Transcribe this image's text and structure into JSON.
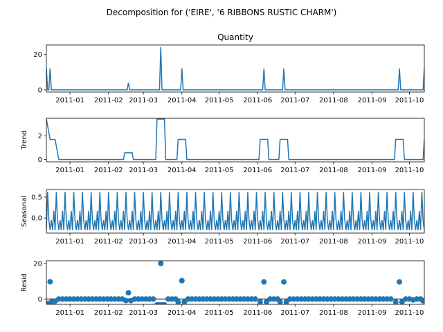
{
  "suptitle": "Decomposition for ('EIRE', '6 RIBBONS RUSTIC CHARM')",
  "colors": {
    "series": "#1f77b4",
    "axes": "#000000",
    "background": "#ffffff"
  },
  "chart_data": [
    {
      "type": "line",
      "title": "Quantity",
      "ylabel": "",
      "ylim": [
        -1.2,
        25.2
      ],
      "yticks": [
        0,
        20
      ],
      "ytick_labels": [
        "0",
        "20"
      ],
      "xlim": [
        "2010-12-13",
        "2011-10-13"
      ],
      "xticks": [
        "2011-01-01",
        "2011-02-01",
        "2011-03-01",
        "2011-04-01",
        "2011-05-01",
        "2011-06-01",
        "2011-07-01",
        "2011-08-01",
        "2011-09-01",
        "2011-10-01"
      ],
      "xtick_labels": [
        "2011-01",
        "2011-02",
        "2011-03",
        "2011-04",
        "2011-05",
        "2011-06",
        "2011-07",
        "2011-08",
        "2011-09",
        "2011-10"
      ],
      "baseline": 0,
      "spikes": [
        {
          "x": "2010-12-13",
          "value": 12
        },
        {
          "x": "2010-12-16",
          "value": 12
        },
        {
          "x": "2011-02-17",
          "value": 4
        },
        {
          "x": "2011-03-15",
          "value": 24
        },
        {
          "x": "2011-04-01",
          "value": 12
        },
        {
          "x": "2011-06-06",
          "value": 12
        },
        {
          "x": "2011-06-22",
          "value": 12
        },
        {
          "x": "2011-09-23",
          "value": 12
        },
        {
          "x": "2011-10-13",
          "value": 12
        }
      ]
    },
    {
      "type": "line",
      "title": "",
      "ylabel": "Trend",
      "ylim": [
        -0.2,
        3.5
      ],
      "yticks": [
        0,
        2
      ],
      "ytick_labels": [
        "0",
        "2"
      ],
      "xlim": [
        "2010-12-13",
        "2011-10-13"
      ],
      "xticks": [
        "2011-01-01",
        "2011-02-01",
        "2011-03-01",
        "2011-04-01",
        "2011-05-01",
        "2011-06-01",
        "2011-07-01",
        "2011-08-01",
        "2011-09-01",
        "2011-10-01"
      ],
      "xtick_labels": [
        "2011-01",
        "2011-02",
        "2011-03",
        "2011-04",
        "2011-05",
        "2011-06",
        "2011-07",
        "2011-08",
        "2011-09",
        "2011-10"
      ],
      "points": [
        {
          "x": "2010-12-13",
          "y": 3.45
        },
        {
          "x": "2010-12-16",
          "y": 1.7
        },
        {
          "x": "2010-12-20",
          "y": 1.7
        },
        {
          "x": "2010-12-23",
          "y": 0
        },
        {
          "x": "2011-02-13",
          "y": 0
        },
        {
          "x": "2011-02-14",
          "y": 0.57
        },
        {
          "x": "2011-02-20",
          "y": 0.57
        },
        {
          "x": "2011-02-21",
          "y": 0
        },
        {
          "x": "2011-03-11",
          "y": 0
        },
        {
          "x": "2011-03-12",
          "y": 3.43
        },
        {
          "x": "2011-03-18",
          "y": 3.43
        },
        {
          "x": "2011-03-19",
          "y": 0
        },
        {
          "x": "2011-03-28",
          "y": 0
        },
        {
          "x": "2011-03-29",
          "y": 1.71
        },
        {
          "x": "2011-04-04",
          "y": 1.71
        },
        {
          "x": "2011-04-05",
          "y": 0
        },
        {
          "x": "2011-06-02",
          "y": 0
        },
        {
          "x": "2011-06-03",
          "y": 1.71
        },
        {
          "x": "2011-06-09",
          "y": 1.71
        },
        {
          "x": "2011-06-10",
          "y": 0
        },
        {
          "x": "2011-06-18",
          "y": 0
        },
        {
          "x": "2011-06-19",
          "y": 1.71
        },
        {
          "x": "2011-06-25",
          "y": 1.71
        },
        {
          "x": "2011-06-26",
          "y": 0
        },
        {
          "x": "2011-09-19",
          "y": 0
        },
        {
          "x": "2011-09-20",
          "y": 1.71
        },
        {
          "x": "2011-09-26",
          "y": 1.71
        },
        {
          "x": "2011-09-27",
          "y": 0
        },
        {
          "x": "2011-10-12",
          "y": 0
        },
        {
          "x": "2011-10-13",
          "y": 1.71
        }
      ]
    },
    {
      "type": "line",
      "title": "",
      "ylabel": "Seasonal",
      "ylim": [
        -0.36,
        0.68
      ],
      "yticks": [
        0.0,
        0.5
      ],
      "ytick_labels": [
        "0.0",
        "0.5"
      ],
      "xlim": [
        "2010-12-13",
        "2011-10-13"
      ],
      "xticks": [
        "2011-01-01",
        "2011-02-01",
        "2011-03-01",
        "2011-04-01",
        "2011-05-01",
        "2011-06-01",
        "2011-07-01",
        "2011-08-01",
        "2011-09-01",
        "2011-10-01"
      ],
      "xtick_labels": [
        "2011-01",
        "2011-02",
        "2011-03",
        "2011-04",
        "2011-05",
        "2011-06",
        "2011-07",
        "2011-08",
        "2011-09",
        "2011-10"
      ],
      "period_days": 7,
      "weekly_pattern": [
        -0.29,
        0.62,
        -0.05,
        -0.29,
        -0.05,
        -0.29,
        0.17
      ]
    },
    {
      "type": "scatter",
      "title": "",
      "ylabel": "Resid",
      "ylim": [
        -3.0,
        21.5
      ],
      "yticks": [
        0,
        20
      ],
      "ytick_labels": [
        "0",
        "20"
      ],
      "xlim": [
        "2010-12-13",
        "2011-10-13"
      ],
      "xticks": [
        "2011-01-01",
        "2011-02-01",
        "2011-03-01",
        "2011-04-01",
        "2011-05-01",
        "2011-06-01",
        "2011-07-01",
        "2011-08-01",
        "2011-09-01",
        "2011-10-01"
      ],
      "xtick_labels": [
        "2011-01",
        "2011-02",
        "2011-03",
        "2011-04",
        "2011-05",
        "2011-06",
        "2011-07",
        "2011-08",
        "2011-09",
        "2011-10"
      ],
      "points": [
        {
          "x": "2010-12-14",
          "y": -2.5
        },
        {
          "x": "2010-12-16",
          "y": 9.7
        },
        {
          "x": "2010-12-17",
          "y": -1.8
        },
        {
          "x": "2010-12-20",
          "y": -1.2
        },
        {
          "x": "2010-12-23",
          "y": 0
        },
        {
          "x": "2010-12-26",
          "y": 0
        },
        {
          "x": "2010-12-29",
          "y": 0
        },
        {
          "x": "2011-01-01",
          "y": 0
        },
        {
          "x": "2011-01-04",
          "y": 0
        },
        {
          "x": "2011-01-07",
          "y": 0
        },
        {
          "x": "2011-01-10",
          "y": 0
        },
        {
          "x": "2011-01-13",
          "y": 0
        },
        {
          "x": "2011-01-16",
          "y": 0
        },
        {
          "x": "2011-01-19",
          "y": 0
        },
        {
          "x": "2011-01-22",
          "y": 0
        },
        {
          "x": "2011-01-25",
          "y": 0
        },
        {
          "x": "2011-01-28",
          "y": 0
        },
        {
          "x": "2011-01-31",
          "y": 0
        },
        {
          "x": "2011-02-03",
          "y": 0
        },
        {
          "x": "2011-02-06",
          "y": 0
        },
        {
          "x": "2011-02-09",
          "y": 0
        },
        {
          "x": "2011-02-12",
          "y": 0
        },
        {
          "x": "2011-02-15",
          "y": -0.9
        },
        {
          "x": "2011-02-17",
          "y": 3.5
        },
        {
          "x": "2011-02-19",
          "y": -0.9
        },
        {
          "x": "2011-02-22",
          "y": 0
        },
        {
          "x": "2011-02-25",
          "y": 0
        },
        {
          "x": "2011-02-28",
          "y": 0
        },
        {
          "x": "2011-03-03",
          "y": 0
        },
        {
          "x": "2011-03-06",
          "y": 0
        },
        {
          "x": "2011-03-09",
          "y": 0
        },
        {
          "x": "2011-03-12",
          "y": -3.3
        },
        {
          "x": "2011-03-14",
          "y": -3.3
        },
        {
          "x": "2011-03-15",
          "y": 20.0
        },
        {
          "x": "2011-03-16",
          "y": -3.3
        },
        {
          "x": "2011-03-18",
          "y": -3.3
        },
        {
          "x": "2011-03-21",
          "y": 0
        },
        {
          "x": "2011-03-24",
          "y": 0
        },
        {
          "x": "2011-03-27",
          "y": 0
        },
        {
          "x": "2011-03-29",
          "y": -1.7
        },
        {
          "x": "2011-04-01",
          "y": 10.3
        },
        {
          "x": "2011-04-03",
          "y": -1.7
        },
        {
          "x": "2011-04-06",
          "y": 0
        },
        {
          "x": "2011-04-09",
          "y": 0
        },
        {
          "x": "2011-04-12",
          "y": 0
        },
        {
          "x": "2011-04-15",
          "y": 0
        },
        {
          "x": "2011-04-18",
          "y": 0
        },
        {
          "x": "2011-04-21",
          "y": 0
        },
        {
          "x": "2011-04-24",
          "y": 0
        },
        {
          "x": "2011-04-27",
          "y": 0
        },
        {
          "x": "2011-04-30",
          "y": 0
        },
        {
          "x": "2011-05-03",
          "y": 0
        },
        {
          "x": "2011-05-06",
          "y": 0
        },
        {
          "x": "2011-05-09",
          "y": 0
        },
        {
          "x": "2011-05-12",
          "y": 0
        },
        {
          "x": "2011-05-15",
          "y": 0
        },
        {
          "x": "2011-05-18",
          "y": 0
        },
        {
          "x": "2011-05-21",
          "y": 0
        },
        {
          "x": "2011-05-24",
          "y": 0
        },
        {
          "x": "2011-05-27",
          "y": 0
        },
        {
          "x": "2011-05-30",
          "y": 0
        },
        {
          "x": "2011-06-03",
          "y": -1.7
        },
        {
          "x": "2011-06-06",
          "y": 9.6
        },
        {
          "x": "2011-06-08",
          "y": -1.7
        },
        {
          "x": "2011-06-11",
          "y": 0
        },
        {
          "x": "2011-06-14",
          "y": 0
        },
        {
          "x": "2011-06-17",
          "y": 0
        },
        {
          "x": "2011-06-19",
          "y": -1.7
        },
        {
          "x": "2011-06-22",
          "y": 9.6
        },
        {
          "x": "2011-06-24",
          "y": -1.7
        },
        {
          "x": "2011-06-27",
          "y": 0
        },
        {
          "x": "2011-06-30",
          "y": 0
        },
        {
          "x": "2011-07-03",
          "y": 0
        },
        {
          "x": "2011-07-06",
          "y": 0
        },
        {
          "x": "2011-07-09",
          "y": 0
        },
        {
          "x": "2011-07-12",
          "y": 0
        },
        {
          "x": "2011-07-15",
          "y": 0
        },
        {
          "x": "2011-07-18",
          "y": 0
        },
        {
          "x": "2011-07-21",
          "y": 0
        },
        {
          "x": "2011-07-24",
          "y": 0
        },
        {
          "x": "2011-07-27",
          "y": 0
        },
        {
          "x": "2011-07-30",
          "y": 0
        },
        {
          "x": "2011-08-02",
          "y": 0
        },
        {
          "x": "2011-08-05",
          "y": 0
        },
        {
          "x": "2011-08-08",
          "y": 0
        },
        {
          "x": "2011-08-11",
          "y": 0
        },
        {
          "x": "2011-08-14",
          "y": 0
        },
        {
          "x": "2011-08-17",
          "y": 0
        },
        {
          "x": "2011-08-20",
          "y": 0
        },
        {
          "x": "2011-08-23",
          "y": 0
        },
        {
          "x": "2011-08-26",
          "y": 0
        },
        {
          "x": "2011-08-29",
          "y": 0
        },
        {
          "x": "2011-09-01",
          "y": 0
        },
        {
          "x": "2011-09-04",
          "y": 0
        },
        {
          "x": "2011-09-07",
          "y": 0
        },
        {
          "x": "2011-09-10",
          "y": 0
        },
        {
          "x": "2011-09-13",
          "y": 0
        },
        {
          "x": "2011-09-16",
          "y": 0
        },
        {
          "x": "2011-09-20",
          "y": -1.7
        },
        {
          "x": "2011-09-23",
          "y": 9.6
        },
        {
          "x": "2011-09-25",
          "y": -1.7
        },
        {
          "x": "2011-09-28",
          "y": 0
        },
        {
          "x": "2011-10-01",
          "y": 0
        },
        {
          "x": "2011-10-04",
          "y": -0.5
        },
        {
          "x": "2011-10-07",
          "y": 0
        },
        {
          "x": "2011-10-10",
          "y": 0
        },
        {
          "x": "2011-10-12",
          "y": -1.0
        }
      ]
    }
  ]
}
